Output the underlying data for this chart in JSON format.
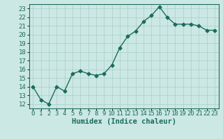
{
  "x": [
    0,
    1,
    2,
    3,
    4,
    5,
    6,
    7,
    8,
    9,
    10,
    11,
    12,
    13,
    14,
    15,
    16,
    17,
    18,
    19,
    20,
    21,
    22,
    23
  ],
  "y": [
    14,
    12.5,
    12,
    14,
    13.5,
    15.5,
    15.8,
    15.5,
    15.3,
    15.5,
    16.5,
    18.5,
    19.8,
    20.4,
    21.5,
    22.2,
    23.2,
    22,
    21.2,
    21.2,
    21.2,
    21,
    20.5,
    20.5
  ],
  "line_color": "#1a6b5e",
  "bg_color": "#cce8e4",
  "grid_color": "#a8cec8",
  "xlabel": "Humidex (Indice chaleur)",
  "ylim": [
    11.5,
    23.5
  ],
  "xlim": [
    -0.5,
    23.5
  ],
  "yticks": [
    12,
    13,
    14,
    15,
    16,
    17,
    18,
    19,
    20,
    21,
    22,
    23
  ],
  "xtick_labels": [
    "0",
    "1",
    "2",
    "3",
    "4",
    "5",
    "6",
    "7",
    "8",
    "9",
    "10",
    "11",
    "12",
    "13",
    "14",
    "15",
    "16",
    "17",
    "18",
    "19",
    "20",
    "21",
    "22",
    "23"
  ],
  "marker": "D",
  "marker_size": 2.5,
  "linewidth": 1.0,
  "xlabel_fontsize": 7.5,
  "tick_fontsize": 6.5
}
